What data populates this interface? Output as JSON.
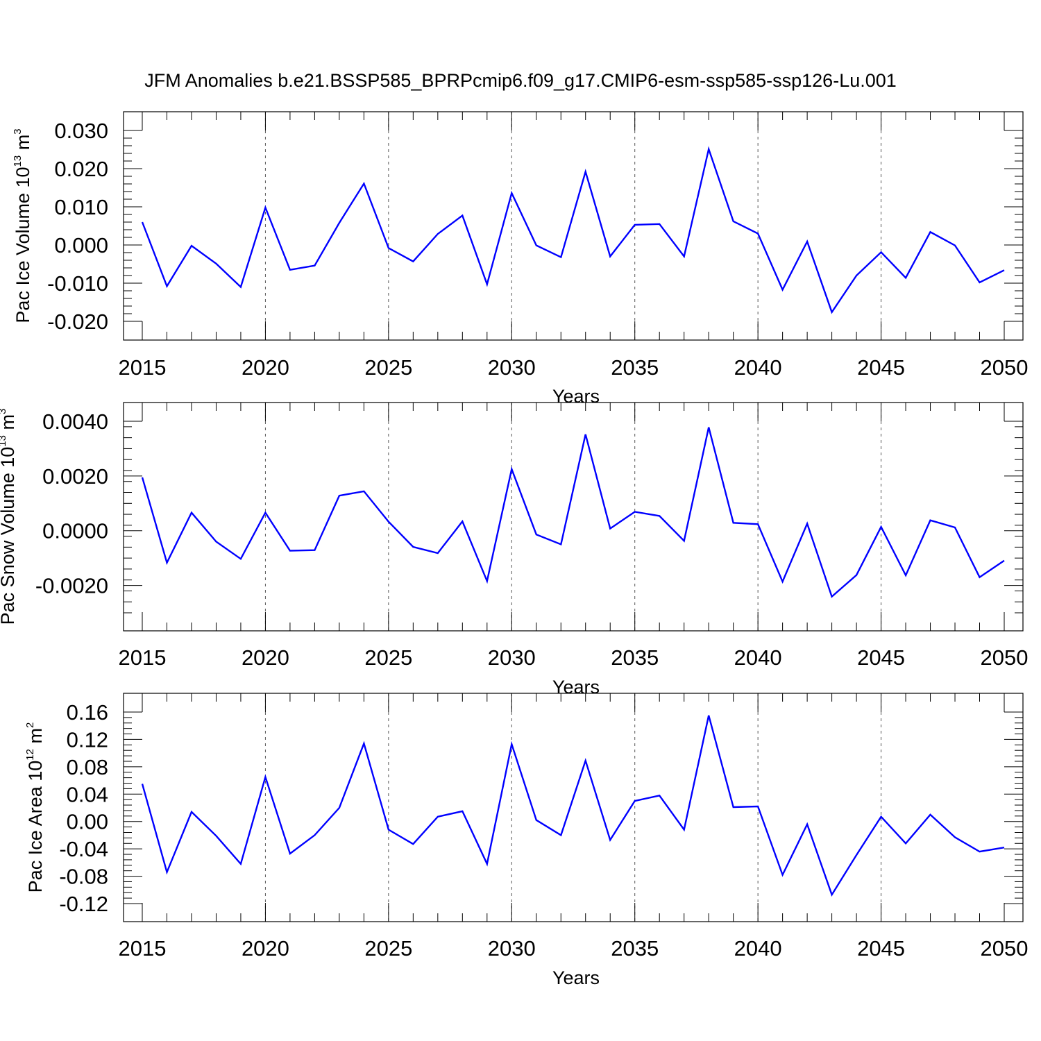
{
  "title": "JFM Anomalies b.e21.BSSP585_BPRPcmip6.f09_g17.CMIP6-esm-ssp585-ssp126-Lu.001",
  "chart_data": [
    {
      "type": "line",
      "title": "JFM Anomalies b.e21.BSSP585_BPRPcmip6.f09_g17.CMIP6-esm-ssp585-ssp126-Lu.001",
      "ylabel": {
        "prefix": "Pac Ice Volume 10",
        "exponent": "13",
        "unit": " m",
        "unit_exponent": "3"
      },
      "xlabel": "Years",
      "xlim": [
        2015,
        2050
      ],
      "ylim": [
        -0.02,
        0.03
      ],
      "x_ticks": [
        "2015",
        "2020",
        "2025",
        "2030",
        "2035",
        "2040",
        "2045",
        "2050"
      ],
      "y_ticks": [
        {
          "value": 0.03,
          "label": "0.030"
        },
        {
          "value": 0.02,
          "label": "0.020"
        },
        {
          "value": 0.01,
          "label": "0.010"
        },
        {
          "value": 0.0,
          "label": "0.000"
        },
        {
          "value": -0.01,
          "label": "-0.010"
        },
        {
          "value": -0.02,
          "label": "-0.020"
        }
      ],
      "grid": "vertical dashed at major x ticks",
      "color": "#0000ff",
      "x": [
        2015,
        2016,
        2017,
        2018,
        2019,
        2020,
        2021,
        2022,
        2023,
        2024,
        2025,
        2026,
        2027,
        2028,
        2029,
        2030,
        2031,
        2032,
        2033,
        2034,
        2035,
        2036,
        2037,
        2038,
        2039,
        2040,
        2041,
        2042,
        2043,
        2044,
        2045,
        2046,
        2047,
        2048,
        2049,
        2050
      ],
      "values": [
        0.006,
        -0.0108,
        -0.0002,
        -0.0049,
        -0.011,
        0.0098,
        -0.0065,
        -0.0054,
        0.0058,
        0.0161,
        -0.0008,
        -0.0043,
        0.0029,
        0.0077,
        -0.0103,
        0.0136,
        -0.0001,
        -0.0032,
        0.0192,
        -0.003,
        0.0053,
        0.0055,
        -0.003,
        0.0251,
        0.0062,
        0.003,
        -0.0117,
        0.0009,
        -0.0176,
        -0.008,
        -0.0019,
        -0.0086,
        0.0034,
        -0.0001,
        -0.0098,
        -0.0066
      ]
    },
    {
      "type": "line",
      "ylabel": {
        "prefix": "Pac Snow Volume 10",
        "exponent": "13",
        "unit": " m",
        "unit_exponent": "3"
      },
      "xlabel": "Years",
      "xlim": [
        2015,
        2050
      ],
      "ylim": [
        -0.003,
        0.004
      ],
      "x_ticks": [
        "2015",
        "2020",
        "2025",
        "2030",
        "2035",
        "2040",
        "2045",
        "2050"
      ],
      "y_ticks": [
        {
          "value": 0.004,
          "label": "0.0040"
        },
        {
          "value": 0.002,
          "label": "0.0020"
        },
        {
          "value": 0.0,
          "label": "0.0000"
        },
        {
          "value": -0.002,
          "label": "-0.0020"
        }
      ],
      "grid": "vertical dashed at major x ticks",
      "color": "#0000ff",
      "x": [
        2015,
        2016,
        2017,
        2018,
        2019,
        2020,
        2021,
        2022,
        2023,
        2024,
        2025,
        2026,
        2027,
        2028,
        2029,
        2030,
        2031,
        2032,
        2033,
        2034,
        2035,
        2036,
        2037,
        2038,
        2039,
        2040,
        2041,
        2042,
        2043,
        2044,
        2045,
        2046,
        2047,
        2048,
        2049,
        2050
      ],
      "values": [
        0.00195,
        -0.00117,
        0.00066,
        -0.0004,
        -0.00103,
        0.00066,
        -0.00073,
        -0.00071,
        0.00128,
        0.00144,
        0.00033,
        -0.00059,
        -0.00082,
        0.00034,
        -0.00184,
        0.00225,
        -0.00014,
        -0.0005,
        0.00352,
        8e-05,
        0.00069,
        0.00054,
        -0.00037,
        0.00378,
        0.00029,
        0.00024,
        -0.00186,
        0.00026,
        -0.00241,
        -0.00162,
        0.00014,
        -0.00163,
        0.00038,
        0.00012,
        -0.0017,
        -0.00109
      ]
    },
    {
      "type": "line",
      "ylabel": {
        "prefix": "Pac Ice Area 10",
        "exponent": "12",
        "unit": " m",
        "unit_exponent": "2"
      },
      "xlabel": "Years",
      "xlim": [
        2015,
        2050
      ],
      "ylim": [
        -0.12,
        0.16
      ],
      "x_ticks": [
        "2015",
        "2020",
        "2025",
        "2030",
        "2035",
        "2040",
        "2045",
        "2050"
      ],
      "y_ticks": [
        {
          "value": 0.16,
          "label": "0.16"
        },
        {
          "value": 0.12,
          "label": "0.12"
        },
        {
          "value": 0.08,
          "label": "0.08"
        },
        {
          "value": 0.04,
          "label": "0.04"
        },
        {
          "value": 0.0,
          "label": "0.00"
        },
        {
          "value": -0.04,
          "label": "-0.04"
        },
        {
          "value": -0.08,
          "label": "-0.08"
        },
        {
          "value": -0.12,
          "label": "-0.12"
        }
      ],
      "grid": "vertical dashed at major x ticks",
      "color": "#0000ff",
      "x": [
        2015,
        2016,
        2017,
        2018,
        2019,
        2020,
        2021,
        2022,
        2023,
        2024,
        2025,
        2026,
        2027,
        2028,
        2029,
        2030,
        2031,
        2032,
        2033,
        2034,
        2035,
        2036,
        2037,
        2038,
        2039,
        2040,
        2041,
        2042,
        2043,
        2044,
        2045,
        2046,
        2047,
        2048,
        2049,
        2050
      ],
      "values": [
        0.055,
        -0.074,
        0.014,
        -0.021,
        -0.062,
        0.065,
        -0.047,
        -0.02,
        0.02,
        0.114,
        -0.012,
        -0.033,
        0.007,
        0.015,
        -0.062,
        0.113,
        0.002,
        -0.02,
        0.089,
        -0.027,
        0.03,
        0.038,
        -0.012,
        0.155,
        0.021,
        0.022,
        -0.078,
        -0.004,
        -0.107,
        -0.049,
        0.007,
        -0.032,
        0.01,
        -0.023,
        -0.044,
        -0.038
      ]
    }
  ]
}
